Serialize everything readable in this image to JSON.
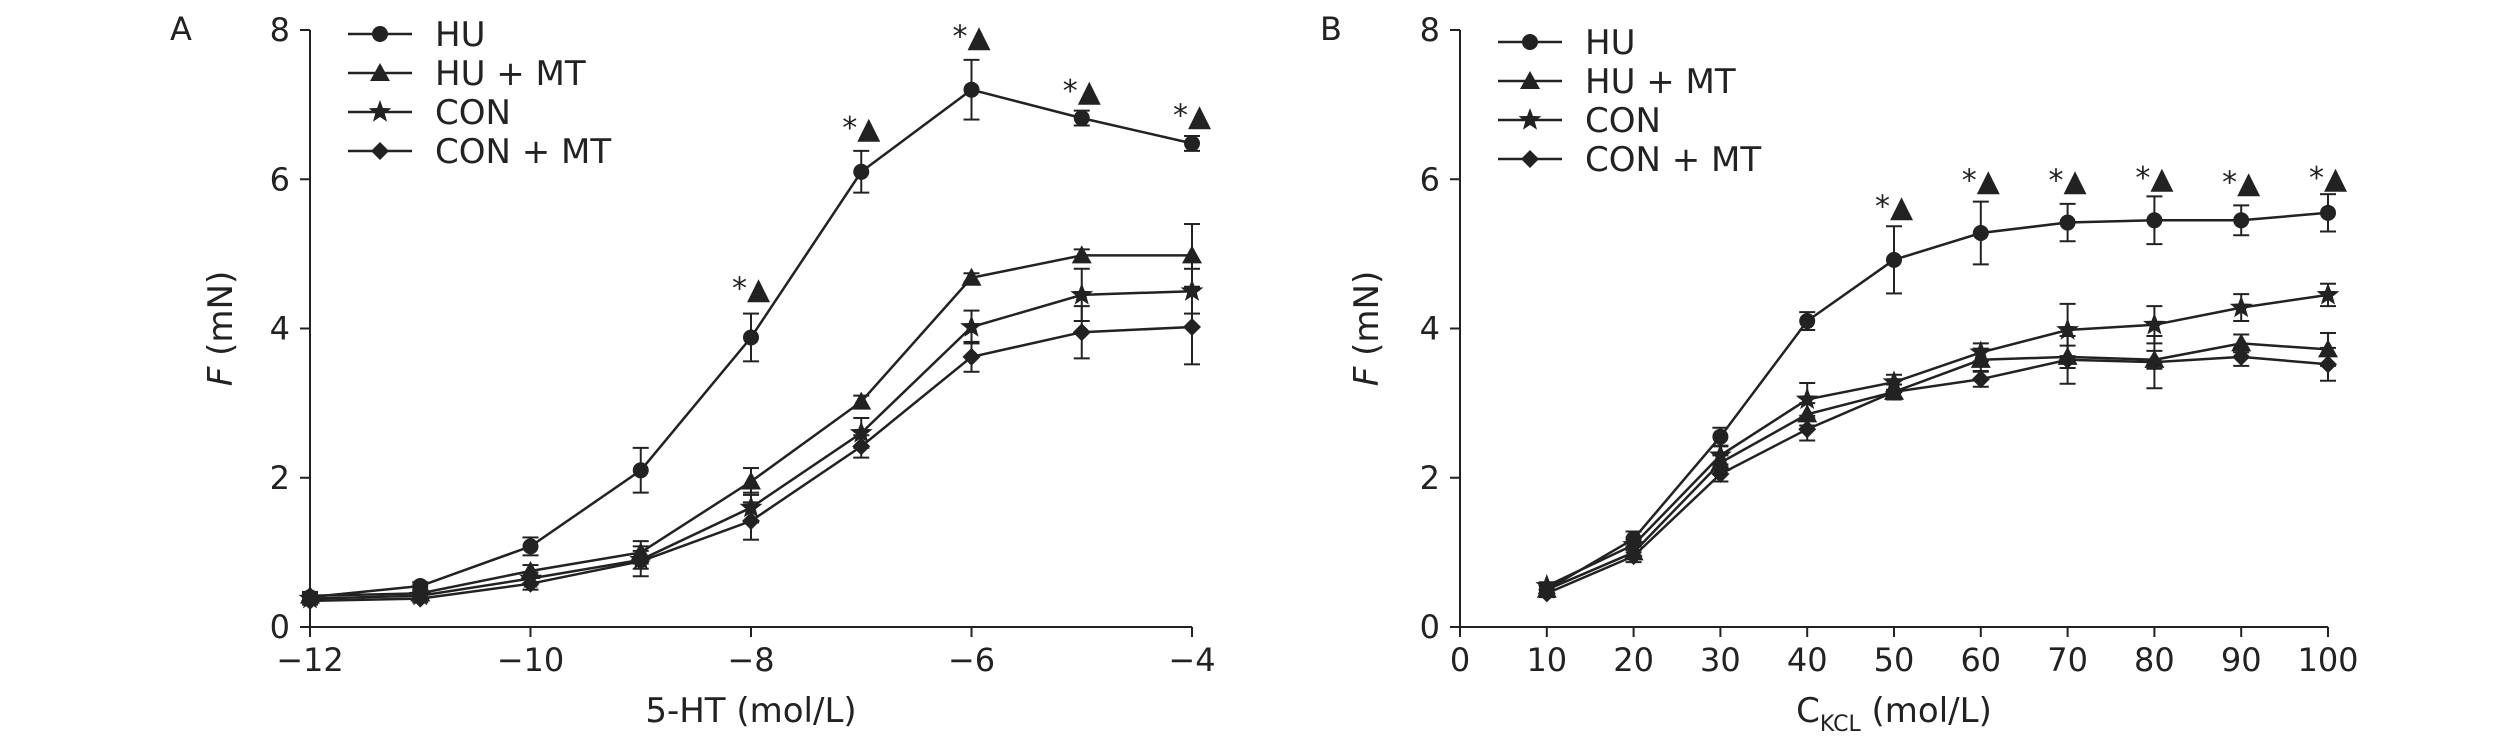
{
  "chart_data": [
    {
      "type": "line",
      "panel_label": "A",
      "xlabel": "5-HT (mol/L)",
      "ylabel_italic": "F",
      "ylabel_rest": " (mN)",
      "xlim": [
        -12,
        -4
      ],
      "ylim": [
        0,
        8
      ],
      "x_ticks": [
        -12,
        -10,
        -8,
        -6,
        -4
      ],
      "x_tick_labels": [
        "−12",
        "−10",
        "−8",
        "−6",
        "−4"
      ],
      "y_ticks": [
        0,
        2,
        4,
        6,
        8
      ],
      "x": [
        -12,
        -11,
        -10,
        -9,
        -8,
        -7,
        -6,
        -5,
        -4
      ],
      "legend_position": "top-left",
      "series": [
        {
          "name": "HU",
          "marker": "circle",
          "values": [
            0.4,
            0.55,
            1.08,
            2.1,
            3.88,
            6.1,
            7.2,
            6.82,
            6.48
          ],
          "errors": [
            0.05,
            0.05,
            0.12,
            0.3,
            0.32,
            0.28,
            0.4,
            0.1,
            0.1
          ]
        },
        {
          "name": "HU + MT",
          "marker": "triangle",
          "values": [
            0.42,
            0.45,
            0.75,
            1.0,
            1.95,
            3.02,
            4.68,
            4.98,
            4.98
          ],
          "errors": [
            0.05,
            0.05,
            0.08,
            0.15,
            0.18,
            0.08,
            0.06,
            0.08,
            0.42
          ]
        },
        {
          "name": "CON",
          "marker": "star",
          "values": [
            0.38,
            0.42,
            0.65,
            0.9,
            1.6,
            2.6,
            4.02,
            4.45,
            4.5
          ],
          "errors": [
            0.05,
            0.05,
            0.08,
            0.12,
            0.2,
            0.2,
            0.22,
            0.35,
            0.3
          ]
        },
        {
          "name": "CON + MT",
          "marker": "diamond",
          "values": [
            0.35,
            0.38,
            0.58,
            0.88,
            1.42,
            2.42,
            3.62,
            3.95,
            4.02
          ],
          "errors": [
            0.05,
            0.05,
            0.08,
            0.2,
            0.25,
            0.15,
            0.2,
            0.35,
            0.5
          ]
        }
      ],
      "annotations": [
        {
          "x": -8,
          "y": 4.4,
          "text": "*▲"
        },
        {
          "x": -7,
          "y": 6.55,
          "text": "*▲"
        },
        {
          "x": -6,
          "y": 7.78,
          "text": "*▲"
        },
        {
          "x": -5,
          "y": 7.05,
          "text": "*▲"
        },
        {
          "x": -4,
          "y": 6.72,
          "text": "*▲"
        }
      ]
    },
    {
      "type": "line",
      "panel_label": "B",
      "xlabel_main": "C",
      "xlabel_sub": "KCL",
      "xlabel_rest": " (mol/L)",
      "ylabel_italic": "F",
      "ylabel_rest": " (mN)",
      "xlim": [
        0,
        100
      ],
      "ylim": [
        0,
        8
      ],
      "x_ticks": [
        0,
        10,
        20,
        30,
        40,
        50,
        60,
        70,
        80,
        90,
        100
      ],
      "x_tick_labels": [
        "0",
        "10",
        "20",
        "30",
        "40",
        "50",
        "60",
        "70",
        "80",
        "90",
        "100"
      ],
      "y_ticks": [
        0,
        2,
        4,
        6,
        8
      ],
      "x": [
        10,
        20,
        30,
        40,
        50,
        60,
        70,
        80,
        90,
        100
      ],
      "legend_position": "top-left",
      "series": [
        {
          "name": "HU",
          "marker": "circle",
          "values": [
            0.5,
            1.18,
            2.55,
            4.1,
            4.92,
            5.28,
            5.42,
            5.45,
            5.45,
            5.55
          ],
          "errors": [
            0.05,
            0.1,
            0.12,
            0.12,
            0.45,
            0.42,
            0.25,
            0.32,
            0.2,
            0.25
          ]
        },
        {
          "name": "HU + MT",
          "marker": "triangle",
          "values": [
            0.5,
            1.0,
            2.2,
            2.85,
            3.15,
            3.58,
            3.62,
            3.58,
            3.8,
            3.72
          ],
          "errors": [
            0.05,
            0.08,
            0.1,
            0.15,
            0.1,
            0.15,
            0.15,
            0.12,
            0.12,
            0.22
          ]
        },
        {
          "name": "CON",
          "marker": "star",
          "values": [
            0.55,
            1.1,
            2.3,
            3.05,
            3.28,
            3.68,
            3.98,
            4.05,
            4.28,
            4.45
          ],
          "errors": [
            0.05,
            0.1,
            0.12,
            0.22,
            0.1,
            0.12,
            0.35,
            0.25,
            0.18,
            0.15
          ]
        },
        {
          "name": "CON + MT",
          "marker": "diamond",
          "values": [
            0.45,
            0.95,
            2.05,
            2.65,
            3.15,
            3.32,
            3.58,
            3.55,
            3.62,
            3.52
          ],
          "errors": [
            0.05,
            0.08,
            0.1,
            0.15,
            0.1,
            0.1,
            0.32,
            0.35,
            0.12,
            0.22
          ]
        }
      ],
      "annotations": [
        {
          "x": 50,
          "y": 5.5,
          "text": "*▲"
        },
        {
          "x": 60,
          "y": 5.85,
          "text": "*▲"
        },
        {
          "x": 70,
          "y": 5.85,
          "text": "*▲"
        },
        {
          "x": 80,
          "y": 5.88,
          "text": "*▲"
        },
        {
          "x": 90,
          "y": 5.82,
          "text": "*▲"
        },
        {
          "x": 100,
          "y": 5.88,
          "text": "*▲"
        }
      ]
    }
  ]
}
